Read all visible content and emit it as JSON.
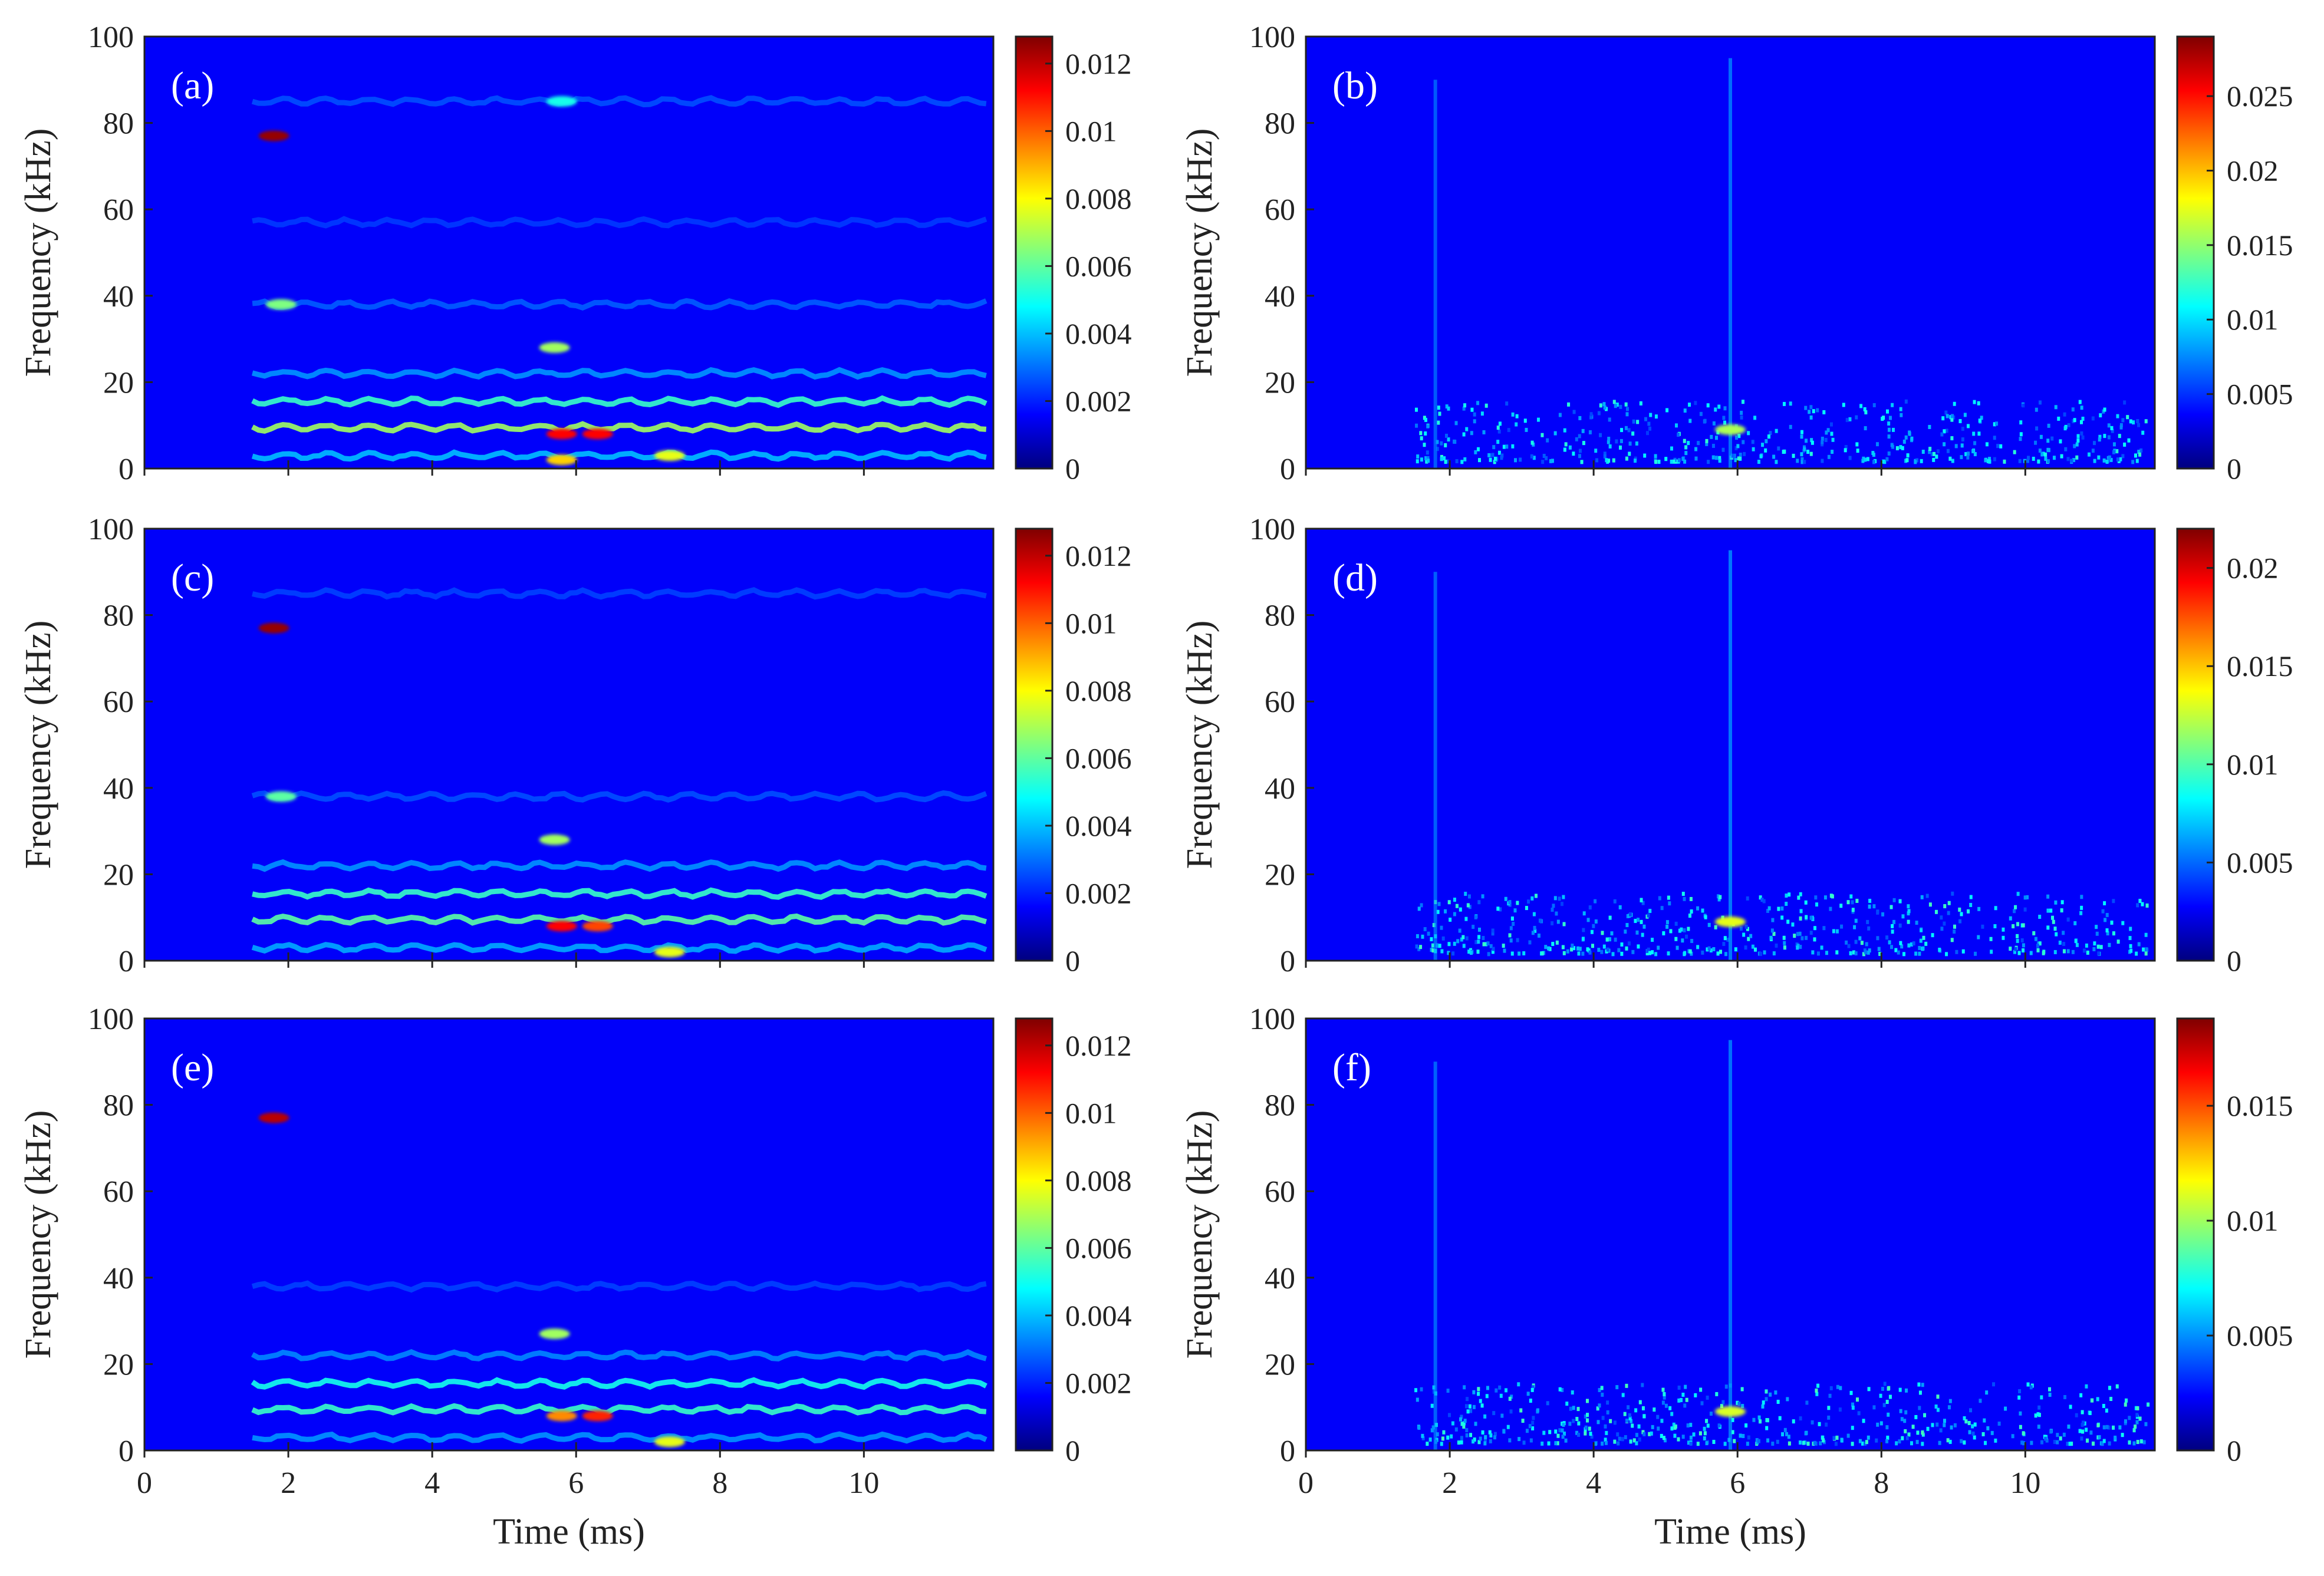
{
  "chart_data": [
    {
      "type": "heatmap",
      "panel_label": "(a)",
      "ylabel": "Frequency (kHz)",
      "xlabel": "",
      "xlim": [
        0,
        11.8
      ],
      "ylim": [
        0,
        100
      ],
      "x_ticks": [
        "0",
        "2",
        "4",
        "6",
        "8",
        "10"
      ],
      "y_ticks": [
        "0",
        "20",
        "40",
        "60",
        "80",
        "100"
      ],
      "colorbar": {
        "min": 0,
        "max": 0.0128,
        "ticks": [
          "0",
          "0.002",
          "0.004",
          "0.006",
          "0.008",
          "0.01",
          "0.012"
        ]
      },
      "features": [
        {
          "kind": "hline",
          "f": 15.5,
          "t0": 1.5,
          "t1": 11.7,
          "level": 0.0045
        },
        {
          "kind": "hline",
          "f": 9.5,
          "t0": 1.5,
          "t1": 11.7,
          "level": 0.006
        },
        {
          "kind": "hline",
          "f": 22,
          "t0": 1.5,
          "t1": 11.7,
          "level": 0.0022
        },
        {
          "kind": "hline",
          "f": 3,
          "t0": 1.5,
          "t1": 11.7,
          "level": 0.0028
        },
        {
          "kind": "hline",
          "f": 38,
          "t0": 1.5,
          "t1": 11.7,
          "level": 0.0014
        },
        {
          "kind": "hline",
          "f": 85,
          "t0": 1.5,
          "t1": 11.7,
          "level": 0.0012
        },
        {
          "kind": "hline",
          "f": 57,
          "t0": 1.5,
          "t1": 11.7,
          "level": 0.0009
        },
        {
          "kind": "spot",
          "t": 1.8,
          "f": 77,
          "level": 0.0125
        },
        {
          "kind": "spot",
          "t": 1.9,
          "f": 38,
          "level": 0.0055
        },
        {
          "kind": "spot",
          "t": 5.8,
          "f": 8,
          "level": 0.011
        },
        {
          "kind": "spot",
          "t": 6.3,
          "f": 8,
          "level": 0.011
        },
        {
          "kind": "spot",
          "t": 5.8,
          "f": 2,
          "level": 0.008
        },
        {
          "kind": "spot",
          "t": 7.3,
          "f": 3,
          "level": 0.007
        },
        {
          "kind": "spot",
          "t": 5.7,
          "f": 28,
          "level": 0.006
        },
        {
          "kind": "spot",
          "t": 5.8,
          "f": 85,
          "level": 0.004
        }
      ]
    },
    {
      "type": "heatmap",
      "panel_label": "(b)",
      "ylabel": "Frequency (kHz)",
      "xlabel": "",
      "xlim": [
        0,
        11.8
      ],
      "ylim": [
        0,
        100
      ],
      "x_ticks": [
        "0",
        "2",
        "4",
        "6",
        "8",
        "10"
      ],
      "y_ticks": [
        "0",
        "20",
        "40",
        "60",
        "80",
        "100"
      ],
      "colorbar": {
        "min": 0,
        "max": 0.029,
        "ticks": [
          "0",
          "0.005",
          "0.01",
          "0.015",
          "0.02",
          "0.025"
        ]
      },
      "features": [
        {
          "kind": "noise",
          "t0": 1.5,
          "t1": 11.7,
          "f0": 2,
          "f1": 16,
          "level": 0.01
        },
        {
          "kind": "vline",
          "t": 1.8,
          "f0": 0,
          "f1": 90,
          "level": 0.005
        },
        {
          "kind": "vline",
          "t": 5.9,
          "f0": 0,
          "f1": 95,
          "level": 0.006
        },
        {
          "kind": "spot",
          "t": 5.9,
          "f": 9,
          "level": 0.014
        }
      ]
    },
    {
      "type": "heatmap",
      "panel_label": "(c)",
      "ylabel": "Frequency (kHz)",
      "xlabel": "",
      "xlim": [
        0,
        11.8
      ],
      "ylim": [
        0,
        100
      ],
      "x_ticks": [
        "0",
        "2",
        "4",
        "6",
        "8",
        "10"
      ],
      "y_ticks": [
        "0",
        "20",
        "40",
        "60",
        "80",
        "100"
      ],
      "colorbar": {
        "min": 0,
        "max": 0.0128,
        "ticks": [
          "0",
          "0.002",
          "0.004",
          "0.006",
          "0.008",
          "0.01",
          "0.012"
        ]
      },
      "features": [
        {
          "kind": "hline",
          "f": 15.5,
          "t0": 1.5,
          "t1": 11.7,
          "level": 0.0045
        },
        {
          "kind": "hline",
          "f": 9.5,
          "t0": 1.5,
          "t1": 11.7,
          "level": 0.005
        },
        {
          "kind": "hline",
          "f": 22,
          "t0": 1.5,
          "t1": 11.7,
          "level": 0.0022
        },
        {
          "kind": "hline",
          "f": 3,
          "t0": 1.5,
          "t1": 11.7,
          "level": 0.0025
        },
        {
          "kind": "hline",
          "f": 38,
          "t0": 1.5,
          "t1": 11.7,
          "level": 0.0012
        },
        {
          "kind": "hline",
          "f": 85,
          "t0": 1.5,
          "t1": 11.7,
          "level": 0.001
        },
        {
          "kind": "spot",
          "t": 1.8,
          "f": 77,
          "level": 0.0125
        },
        {
          "kind": "spot",
          "t": 1.9,
          "f": 38,
          "level": 0.005
        },
        {
          "kind": "spot",
          "t": 5.8,
          "f": 8,
          "level": 0.011
        },
        {
          "kind": "spot",
          "t": 6.3,
          "f": 8,
          "level": 0.01
        },
        {
          "kind": "spot",
          "t": 7.3,
          "f": 2,
          "level": 0.007
        },
        {
          "kind": "spot",
          "t": 5.7,
          "f": 28,
          "level": 0.006
        }
      ]
    },
    {
      "type": "heatmap",
      "panel_label": "(d)",
      "ylabel": "Frequency (kHz)",
      "xlabel": "",
      "xlim": [
        0,
        11.8
      ],
      "ylim": [
        0,
        100
      ],
      "x_ticks": [
        "0",
        "2",
        "4",
        "6",
        "8",
        "10"
      ],
      "y_ticks": [
        "0",
        "20",
        "40",
        "60",
        "80",
        "100"
      ],
      "colorbar": {
        "min": 0,
        "max": 0.022,
        "ticks": [
          "0",
          "0.005",
          "0.01",
          "0.015",
          "0.02"
        ]
      },
      "features": [
        {
          "kind": "noise",
          "t0": 1.5,
          "t1": 11.7,
          "f0": 2,
          "f1": 16,
          "level": 0.008
        },
        {
          "kind": "vline",
          "t": 1.8,
          "f0": 0,
          "f1": 90,
          "level": 0.004
        },
        {
          "kind": "vline",
          "t": 5.9,
          "f0": 0,
          "f1": 95,
          "level": 0.005
        },
        {
          "kind": "spot",
          "t": 5.9,
          "f": 9,
          "level": 0.012
        }
      ]
    },
    {
      "type": "heatmap",
      "panel_label": "(e)",
      "ylabel": "Frequency (kHz)",
      "xlabel": "Time (ms)",
      "xlim": [
        0,
        11.8
      ],
      "ylim": [
        0,
        100
      ],
      "x_ticks": [
        "0",
        "2",
        "4",
        "6",
        "8",
        "10"
      ],
      "y_ticks": [
        "0",
        "20",
        "40",
        "60",
        "80",
        "100"
      ],
      "colorbar": {
        "min": 0,
        "max": 0.0128,
        "ticks": [
          "0",
          "0.002",
          "0.004",
          "0.006",
          "0.008",
          "0.01",
          "0.012"
        ]
      },
      "features": [
        {
          "kind": "hline",
          "f": 15.5,
          "t0": 1.5,
          "t1": 11.7,
          "level": 0.004
        },
        {
          "kind": "hline",
          "f": 9.5,
          "t0": 1.5,
          "t1": 11.7,
          "level": 0.0045
        },
        {
          "kind": "hline",
          "f": 22,
          "t0": 1.5,
          "t1": 11.7,
          "level": 0.002
        },
        {
          "kind": "hline",
          "f": 3,
          "t0": 1.5,
          "t1": 11.7,
          "level": 0.0022
        },
        {
          "kind": "hline",
          "f": 38,
          "t0": 1.5,
          "t1": 11.7,
          "level": 0.001
        },
        {
          "kind": "spot",
          "t": 1.8,
          "f": 77,
          "level": 0.012
        },
        {
          "kind": "spot",
          "t": 6.3,
          "f": 8,
          "level": 0.0105
        },
        {
          "kind": "spot",
          "t": 5.8,
          "f": 8,
          "level": 0.009
        },
        {
          "kind": "spot",
          "t": 7.3,
          "f": 2,
          "level": 0.007
        },
        {
          "kind": "spot",
          "t": 5.7,
          "f": 27,
          "level": 0.006
        }
      ]
    },
    {
      "type": "heatmap",
      "panel_label": "(f)",
      "ylabel": "Frequency (kHz)",
      "xlabel": "Time (ms)",
      "xlim": [
        0,
        11.8
      ],
      "ylim": [
        0,
        100
      ],
      "x_ticks": [
        "0",
        "2",
        "4",
        "6",
        "8",
        "10"
      ],
      "y_ticks": [
        "0",
        "20",
        "40",
        "60",
        "80",
        "100"
      ],
      "colorbar": {
        "min": 0,
        "max": 0.0188,
        "ticks": [
          "0",
          "0.005",
          "0.01",
          "0.015"
        ]
      },
      "features": [
        {
          "kind": "noise",
          "t0": 1.5,
          "t1": 11.7,
          "f0": 2,
          "f1": 16,
          "level": 0.007
        },
        {
          "kind": "vline",
          "t": 1.8,
          "f0": 0,
          "f1": 90,
          "level": 0.0035
        },
        {
          "kind": "vline",
          "t": 5.9,
          "f0": 0,
          "f1": 95,
          "level": 0.004
        },
        {
          "kind": "spot",
          "t": 5.9,
          "f": 9,
          "level": 0.01
        }
      ]
    }
  ]
}
